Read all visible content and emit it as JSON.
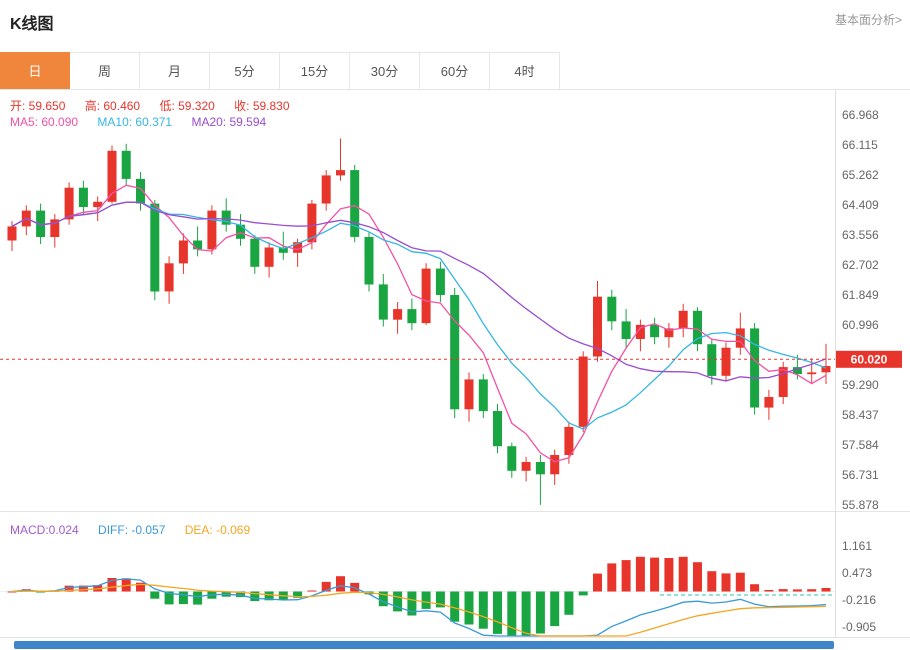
{
  "header": {
    "title": "K线图",
    "link": "基本面分析>"
  },
  "tabs": {
    "items": [
      "日",
      "周",
      "月",
      "5分",
      "15分",
      "30分",
      "60分",
      "4时"
    ],
    "selected": "日"
  },
  "legend": {
    "ohlc_items": [
      "开: 59.650",
      "高: 60.460",
      "低: 59.320",
      "收: 59.830"
    ],
    "ma_items": [
      "MA5: 60.090",
      "MA10: 60.371",
      "MA20: 59.594"
    ],
    "macd_items": [
      "MACD:0.024",
      "DIFF: -0.057",
      "DEA: -0.069"
    ]
  },
  "colors": {
    "accent": "#f0853c",
    "up": "#e8352c",
    "down": "#18a542",
    "ma5": "#f451a5",
    "ma10": "#36b6e2",
    "ma20": "#9a4dd0",
    "macd": "#a05ad5",
    "diff": "#3a9ad9",
    "dea": "#f5a623",
    "axis_text": "#666666",
    "scrollbar": "#3f86c9"
  },
  "chart_data": {
    "type": "candlestick",
    "title": "K线图",
    "period_selected": "日",
    "ohlc_displayed": {
      "open": 59.65,
      "high": 60.46,
      "low": 59.32,
      "close": 59.83
    },
    "ma_displayed": {
      "MA5": 60.09,
      "MA10": 60.371,
      "MA20": 59.594
    },
    "ma_periods": [
      5,
      10,
      20
    ],
    "current_price": 60.02,
    "y_ticks_main": [
      66.968,
      66.115,
      65.262,
      64.409,
      63.556,
      62.702,
      61.849,
      60.996,
      59.29,
      58.437,
      57.584,
      56.731,
      55.878
    ],
    "candles": [
      [
        63.4,
        63.95,
        63.1,
        63.8
      ],
      [
        63.8,
        64.4,
        63.55,
        64.25
      ],
      [
        64.25,
        64.45,
        63.3,
        63.5
      ],
      [
        63.5,
        64.15,
        63.2,
        64.0
      ],
      [
        64.0,
        65.05,
        63.85,
        64.9
      ],
      [
        64.9,
        65.1,
        64.15,
        64.35
      ],
      [
        64.35,
        64.65,
        63.95,
        64.5
      ],
      [
        64.5,
        66.1,
        64.45,
        65.95
      ],
      [
        65.95,
        66.15,
        64.95,
        65.15
      ],
      [
        65.15,
        65.35,
        64.25,
        64.45
      ],
      [
        64.45,
        64.55,
        61.7,
        61.95
      ],
      [
        61.95,
        62.95,
        61.6,
        62.75
      ],
      [
        62.75,
        63.6,
        62.45,
        63.4
      ],
      [
        63.4,
        63.8,
        62.95,
        63.15
      ],
      [
        63.15,
        64.4,
        63.0,
        64.25
      ],
      [
        64.25,
        64.6,
        63.65,
        63.85
      ],
      [
        63.85,
        64.15,
        63.25,
        63.45
      ],
      [
        63.45,
        63.55,
        62.45,
        62.65
      ],
      [
        62.65,
        63.35,
        62.35,
        63.2
      ],
      [
        63.2,
        63.65,
        62.85,
        63.05
      ],
      [
        63.05,
        63.45,
        62.65,
        63.35
      ],
      [
        63.35,
        64.55,
        63.15,
        64.45
      ],
      [
        64.45,
        65.4,
        64.25,
        65.25
      ],
      [
        65.25,
        66.3,
        65.1,
        65.4
      ],
      [
        65.4,
        65.55,
        63.35,
        63.5
      ],
      [
        63.5,
        63.65,
        61.95,
        62.15
      ],
      [
        62.15,
        62.45,
        60.95,
        61.15
      ],
      [
        61.15,
        61.65,
        60.75,
        61.45
      ],
      [
        61.45,
        61.75,
        60.85,
        61.05
      ],
      [
        61.05,
        62.75,
        61.0,
        62.6
      ],
      [
        62.6,
        62.8,
        61.65,
        61.85
      ],
      [
        61.85,
        62.05,
        58.35,
        58.6
      ],
      [
        58.6,
        59.65,
        58.25,
        59.45
      ],
      [
        59.45,
        59.6,
        58.35,
        58.55
      ],
      [
        58.55,
        58.75,
        57.35,
        57.55
      ],
      [
        57.55,
        57.65,
        56.65,
        56.85
      ],
      [
        56.85,
        57.25,
        56.55,
        57.1
      ],
      [
        57.1,
        57.3,
        55.88,
        56.75
      ],
      [
        56.75,
        57.45,
        56.45,
        57.3
      ],
      [
        57.3,
        58.25,
        57.05,
        58.1
      ],
      [
        58.1,
        60.25,
        57.95,
        60.1
      ],
      [
        60.1,
        62.25,
        59.95,
        61.8
      ],
      [
        61.8,
        62.0,
        60.85,
        61.1
      ],
      [
        61.1,
        61.45,
        60.35,
        60.6
      ],
      [
        60.6,
        61.15,
        60.25,
        61.0
      ],
      [
        61.0,
        61.2,
        60.45,
        60.65
      ],
      [
        60.65,
        61.05,
        60.35,
        60.9
      ],
      [
        60.9,
        61.6,
        60.65,
        61.4
      ],
      [
        61.4,
        61.5,
        60.25,
        60.45
      ],
      [
        60.45,
        60.6,
        59.3,
        59.55
      ],
      [
        59.55,
        60.5,
        59.4,
        60.35
      ],
      [
        60.35,
        61.35,
        60.15,
        60.9
      ],
      [
        60.9,
        61.05,
        58.45,
        58.65
      ],
      [
        58.65,
        59.15,
        58.3,
        58.95
      ],
      [
        58.95,
        59.95,
        58.75,
        59.8
      ],
      [
        59.8,
        60.15,
        59.45,
        59.6
      ],
      [
        59.6,
        60.05,
        59.35,
        59.65
      ],
      [
        59.65,
        60.46,
        59.32,
        59.83
      ]
    ],
    "macd": {
      "MACD": 0.024,
      "DIFF": -0.057,
      "DEA": -0.069,
      "y_ticks": [
        1.161,
        0.473,
        -0.216,
        -0.905
      ],
      "ref_dashed_value": -0.09
    }
  }
}
